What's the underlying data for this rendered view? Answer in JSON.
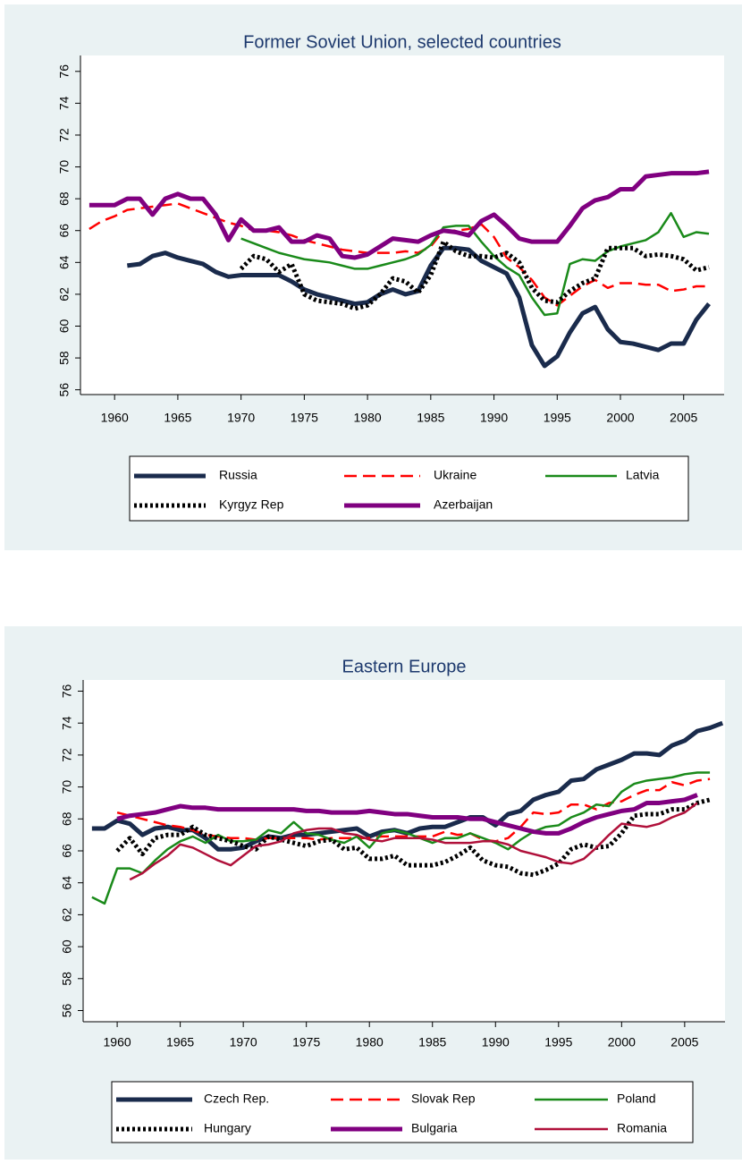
{
  "chart_data": [
    {
      "type": "line",
      "title": "Former Soviet Union, selected countries",
      "x": [
        1958,
        1959,
        1960,
        1961,
        1962,
        1963,
        1964,
        1965,
        1966,
        1967,
        1968,
        1969,
        1970,
        1971,
        1972,
        1973,
        1974,
        1975,
        1976,
        1977,
        1978,
        1979,
        1980,
        1981,
        1982,
        1983,
        1984,
        1985,
        1986,
        1987,
        1988,
        1989,
        1990,
        1991,
        1992,
        1993,
        1994,
        1995,
        1996,
        1997,
        1998,
        1999,
        2000,
        2001,
        2002,
        2003,
        2004,
        2005,
        2006,
        2007,
        2008
      ],
      "xlim": [
        1957.3,
        2008.2
      ],
      "xticks": [
        1960,
        1965,
        1970,
        1975,
        1980,
        1985,
        1990,
        1995,
        2000,
        2005
      ],
      "ylim": [
        55.7,
        77
      ],
      "yticks": [
        56,
        58,
        60,
        62,
        64,
        66,
        68,
        70,
        72,
        74,
        76
      ],
      "series": [
        {
          "name": "Russia",
          "color": "#1a2b4c",
          "style": "thick",
          "values": [
            null,
            null,
            null,
            63.8,
            63.9,
            64.4,
            64.6,
            64.3,
            64.1,
            63.9,
            63.4,
            63.1,
            63.2,
            63.2,
            63.2,
            63.2,
            62.8,
            62.3,
            62.0,
            61.8,
            61.6,
            61.4,
            61.5,
            62.0,
            62.3,
            62.0,
            62.2,
            63.8,
            64.9,
            64.9,
            64.8,
            64.1,
            63.7,
            63.3,
            61.8,
            58.8,
            57.5,
            58.1,
            59.6,
            60.8,
            61.2,
            59.8,
            59.0,
            58.9,
            58.7,
            58.5,
            58.9,
            58.9,
            60.4,
            61.4,
            null
          ]
        },
        {
          "name": "Ukraine",
          "color": "#ff0000",
          "style": "dashed",
          "values": [
            66.1,
            66.6,
            66.9,
            67.3,
            67.4,
            67.5,
            67.6,
            67.7,
            67.4,
            67.1,
            66.8,
            66.5,
            66.3,
            66.0,
            66.0,
            65.9,
            65.7,
            65.4,
            65.2,
            65.0,
            64.8,
            64.7,
            64.6,
            64.6,
            64.6,
            64.7,
            64.6,
            65.0,
            66.0,
            66.0,
            66.1,
            66.4,
            65.6,
            64.3,
            63.7,
            62.9,
            61.8,
            61.3,
            61.9,
            62.5,
            62.9,
            62.4,
            62.7,
            62.7,
            62.6,
            62.6,
            62.2,
            62.3,
            62.5,
            62.5,
            null
          ]
        },
        {
          "name": "Latvia",
          "color": "#1a8a1a",
          "style": "thin",
          "values": [
            null,
            null,
            null,
            null,
            null,
            null,
            null,
            null,
            null,
            null,
            null,
            null,
            65.5,
            65.2,
            64.9,
            64.6,
            64.4,
            64.2,
            64.1,
            64.0,
            63.8,
            63.6,
            63.6,
            63.8,
            64.0,
            64.2,
            64.5,
            65.1,
            66.2,
            66.3,
            66.3,
            65.3,
            64.4,
            63.7,
            63.2,
            61.8,
            60.7,
            60.8,
            63.9,
            64.2,
            64.1,
            64.7,
            65.0,
            65.2,
            65.4,
            65.9,
            67.1,
            65.6,
            65.9,
            65.8,
            null
          ]
        },
        {
          "name": "Kyrgyz Rep",
          "color": "#000000",
          "style": "dotted",
          "values": [
            null,
            null,
            null,
            null,
            null,
            null,
            null,
            null,
            null,
            null,
            null,
            null,
            63.6,
            64.4,
            64.2,
            63.4,
            63.9,
            62.0,
            61.6,
            61.5,
            61.4,
            61.1,
            61.3,
            62.0,
            63.0,
            62.8,
            62.1,
            63.2,
            65.3,
            64.7,
            64.4,
            64.4,
            64.3,
            64.6,
            64.0,
            62.4,
            61.6,
            61.5,
            62.2,
            62.7,
            63.0,
            64.9,
            64.9,
            64.9,
            64.4,
            64.5,
            64.4,
            64.2,
            63.5,
            63.7,
            null
          ]
        },
        {
          "name": "Azerbaijan",
          "color": "#800080",
          "style": "thick",
          "values": [
            67.6,
            67.6,
            67.6,
            68.0,
            68.0,
            67.0,
            68.0,
            68.3,
            68.0,
            68.0,
            67.0,
            65.4,
            66.7,
            66.0,
            66.0,
            66.2,
            65.3,
            65.3,
            65.7,
            65.5,
            64.4,
            64.3,
            64.5,
            65.0,
            65.5,
            65.4,
            65.3,
            65.7,
            66.0,
            65.9,
            65.7,
            66.6,
            67.0,
            66.3,
            65.5,
            65.3,
            65.3,
            65.3,
            66.3,
            67.4,
            67.9,
            68.1,
            68.6,
            68.6,
            69.4,
            69.5,
            69.6,
            69.6,
            69.6,
            69.7,
            null
          ]
        }
      ]
    },
    {
      "type": "line",
      "title": "Eastern Europe",
      "x": [
        1958,
        1959,
        1960,
        1961,
        1962,
        1963,
        1964,
        1965,
        1966,
        1967,
        1968,
        1969,
        1970,
        1971,
        1972,
        1973,
        1974,
        1975,
        1976,
        1977,
        1978,
        1979,
        1980,
        1981,
        1982,
        1983,
        1984,
        1985,
        1986,
        1987,
        1988,
        1989,
        1990,
        1991,
        1992,
        1993,
        1994,
        1995,
        1996,
        1997,
        1998,
        1999,
        2000,
        2001,
        2002,
        2003,
        2004,
        2005,
        2006,
        2007,
        2008
      ],
      "xlim": [
        1957.3,
        2008.2
      ],
      "xticks": [
        1960,
        1965,
        1970,
        1975,
        1980,
        1985,
        1990,
        1995,
        2000,
        2005
      ],
      "ylim": [
        55.3,
        76.7
      ],
      "yticks": [
        56,
        58,
        60,
        62,
        64,
        66,
        68,
        70,
        72,
        74,
        76
      ],
      "series": [
        {
          "name": "Czech Rep.",
          "color": "#1a2b4c",
          "style": "thick",
          "values": [
            67.4,
            67.4,
            67.9,
            67.7,
            67.0,
            67.4,
            67.5,
            67.3,
            67.3,
            66.8,
            66.1,
            66.1,
            66.2,
            66.6,
            66.9,
            66.8,
            67.0,
            67.0,
            67.1,
            67.2,
            67.3,
            67.4,
            66.9,
            67.2,
            67.3,
            67.1,
            67.4,
            67.5,
            67.5,
            67.8,
            68.1,
            68.1,
            67.6,
            68.3,
            68.5,
            69.2,
            69.5,
            69.7,
            70.4,
            70.5,
            71.1,
            71.4,
            71.7,
            72.1,
            72.1,
            72.0,
            72.6,
            72.9,
            73.5,
            73.7,
            74.0
          ]
        },
        {
          "name": "Slovak Rep",
          "color": "#ff0000",
          "style": "dashed",
          "values": [
            null,
            null,
            68.4,
            68.2,
            68.0,
            67.8,
            67.6,
            67.5,
            67.3,
            67.0,
            66.9,
            66.8,
            66.8,
            66.7,
            66.8,
            66.8,
            66.8,
            66.8,
            66.7,
            66.8,
            66.8,
            66.8,
            66.8,
            66.9,
            66.9,
            66.9,
            66.9,
            66.9,
            67.2,
            67.0,
            67.1,
            66.7,
            66.6,
            66.8,
            67.5,
            68.4,
            68.3,
            68.4,
            68.9,
            68.9,
            68.6,
            69.0,
            69.1,
            69.5,
            69.8,
            69.8,
            70.3,
            70.1,
            70.4,
            70.5,
            null
          ]
        },
        {
          "name": "Poland",
          "color": "#1a8a1a",
          "style": "thin",
          "values": [
            63.1,
            62.7,
            64.9,
            64.9,
            64.6,
            65.4,
            66.1,
            66.6,
            66.9,
            66.5,
            67.0,
            66.6,
            66.6,
            66.7,
            67.3,
            67.1,
            67.8,
            67.1,
            67.0,
            66.7,
            66.5,
            66.9,
            66.2,
            67.1,
            67.3,
            67.1,
            66.8,
            66.5,
            66.8,
            66.8,
            67.1,
            66.8,
            66.5,
            66.1,
            66.7,
            67.2,
            67.5,
            67.6,
            68.1,
            68.4,
            68.9,
            68.8,
            69.7,
            70.2,
            70.4,
            70.5,
            70.6,
            70.8,
            70.9,
            70.9,
            null
          ]
        },
        {
          "name": "Hungary",
          "color": "#000000",
          "style": "dotted",
          "values": [
            null,
            null,
            66.0,
            66.8,
            65.8,
            66.8,
            67.0,
            67.0,
            67.5,
            67.0,
            66.8,
            66.6,
            66.3,
            66.1,
            66.9,
            66.7,
            66.5,
            66.3,
            66.6,
            66.7,
            66.1,
            66.2,
            65.5,
            65.5,
            65.7,
            65.1,
            65.1,
            65.1,
            65.3,
            65.7,
            66.2,
            65.4,
            65.1,
            65.0,
            64.6,
            64.5,
            64.8,
            65.2,
            66.1,
            66.4,
            66.2,
            66.3,
            67.1,
            68.2,
            68.3,
            68.3,
            68.6,
            68.6,
            69.0,
            69.2,
            null
          ]
        },
        {
          "name": "Bulgaria",
          "color": "#800080",
          "style": "thick",
          "values": [
            null,
            null,
            68.0,
            68.2,
            68.3,
            68.4,
            68.6,
            68.8,
            68.7,
            68.7,
            68.6,
            68.6,
            68.6,
            68.6,
            68.6,
            68.6,
            68.6,
            68.5,
            68.5,
            68.4,
            68.4,
            68.4,
            68.5,
            68.4,
            68.3,
            68.3,
            68.2,
            68.1,
            68.1,
            68.1,
            68.0,
            68.0,
            67.8,
            67.6,
            67.4,
            67.2,
            67.1,
            67.1,
            67.4,
            67.8,
            68.1,
            68.3,
            68.5,
            68.6,
            69.0,
            69.0,
            69.1,
            69.2,
            69.5,
            null,
            null
          ]
        },
        {
          "name": "Romania",
          "color": "#b0103a",
          "style": "thin",
          "values": [
            null,
            null,
            null,
            64.2,
            64.6,
            65.2,
            65.7,
            66.4,
            66.2,
            65.8,
            65.4,
            65.1,
            65.7,
            66.3,
            66.4,
            66.6,
            67.1,
            67.3,
            67.4,
            67.4,
            67.1,
            67.0,
            66.7,
            66.6,
            66.8,
            66.8,
            66.8,
            66.7,
            66.5,
            66.5,
            66.5,
            66.6,
            66.6,
            66.4,
            66.0,
            65.8,
            65.6,
            65.3,
            65.2,
            65.5,
            66.2,
            67.0,
            67.7,
            67.6,
            67.5,
            67.7,
            68.1,
            68.4,
            69.0,
            null,
            null
          ]
        }
      ]
    }
  ]
}
